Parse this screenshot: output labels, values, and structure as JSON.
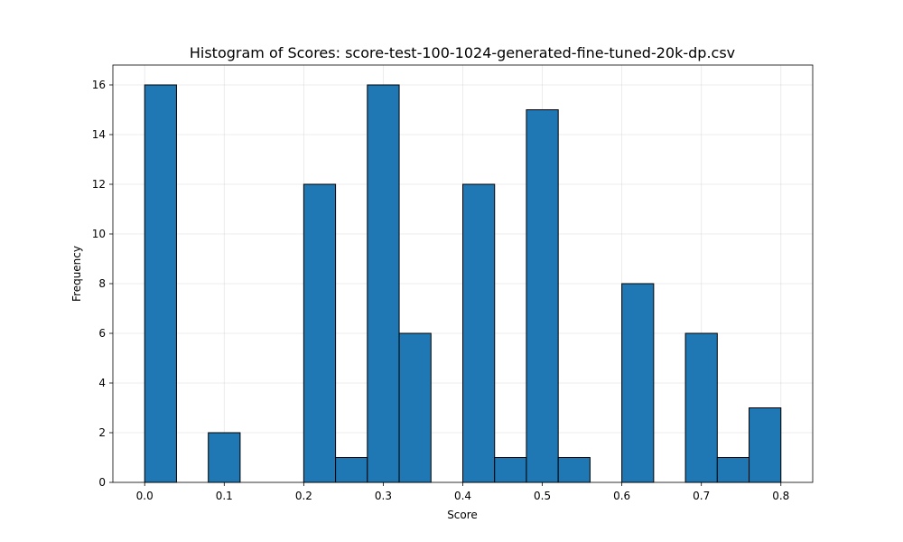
{
  "chart_data": {
    "type": "bar",
    "title": "Histogram of Scores: score-test-100-1024-generated-fine-tuned-20k-dp.csv",
    "xlabel": "Score",
    "ylabel": "Frequency",
    "bin_width": 0.04,
    "bins": [
      {
        "start": 0.0,
        "count": 16
      },
      {
        "start": 0.04,
        "count": 0
      },
      {
        "start": 0.08,
        "count": 2
      },
      {
        "start": 0.12,
        "count": 0
      },
      {
        "start": 0.16,
        "count": 0
      },
      {
        "start": 0.2,
        "count": 12
      },
      {
        "start": 0.24,
        "count": 1
      },
      {
        "start": 0.28,
        "count": 16
      },
      {
        "start": 0.32,
        "count": 6
      },
      {
        "start": 0.36,
        "count": 0
      },
      {
        "start": 0.4,
        "count": 12
      },
      {
        "start": 0.44,
        "count": 1
      },
      {
        "start": 0.48,
        "count": 15
      },
      {
        "start": 0.52,
        "count": 1
      },
      {
        "start": 0.56,
        "count": 0
      },
      {
        "start": 0.6,
        "count": 8
      },
      {
        "start": 0.64,
        "count": 0
      },
      {
        "start": 0.68,
        "count": 6
      },
      {
        "start": 0.72,
        "count": 1
      },
      {
        "start": 0.76,
        "count": 3
      }
    ],
    "xlim": [
      -0.04,
      0.84
    ],
    "ylim": [
      0,
      16.8
    ],
    "xticks": [
      0.0,
      0.1,
      0.2,
      0.3,
      0.4,
      0.5,
      0.6,
      0.7,
      0.8
    ],
    "xtick_labels": [
      "0.0",
      "0.1",
      "0.2",
      "0.3",
      "0.4",
      "0.5",
      "0.6",
      "0.7",
      "0.8"
    ],
    "yticks": [
      0,
      2,
      4,
      6,
      8,
      10,
      12,
      14,
      16
    ],
    "ytick_labels": [
      "0",
      "2",
      "4",
      "6",
      "8",
      "10",
      "12",
      "14",
      "16"
    ],
    "grid": true,
    "bar_color": "#1f77b4",
    "edge_color": "#000000"
  }
}
